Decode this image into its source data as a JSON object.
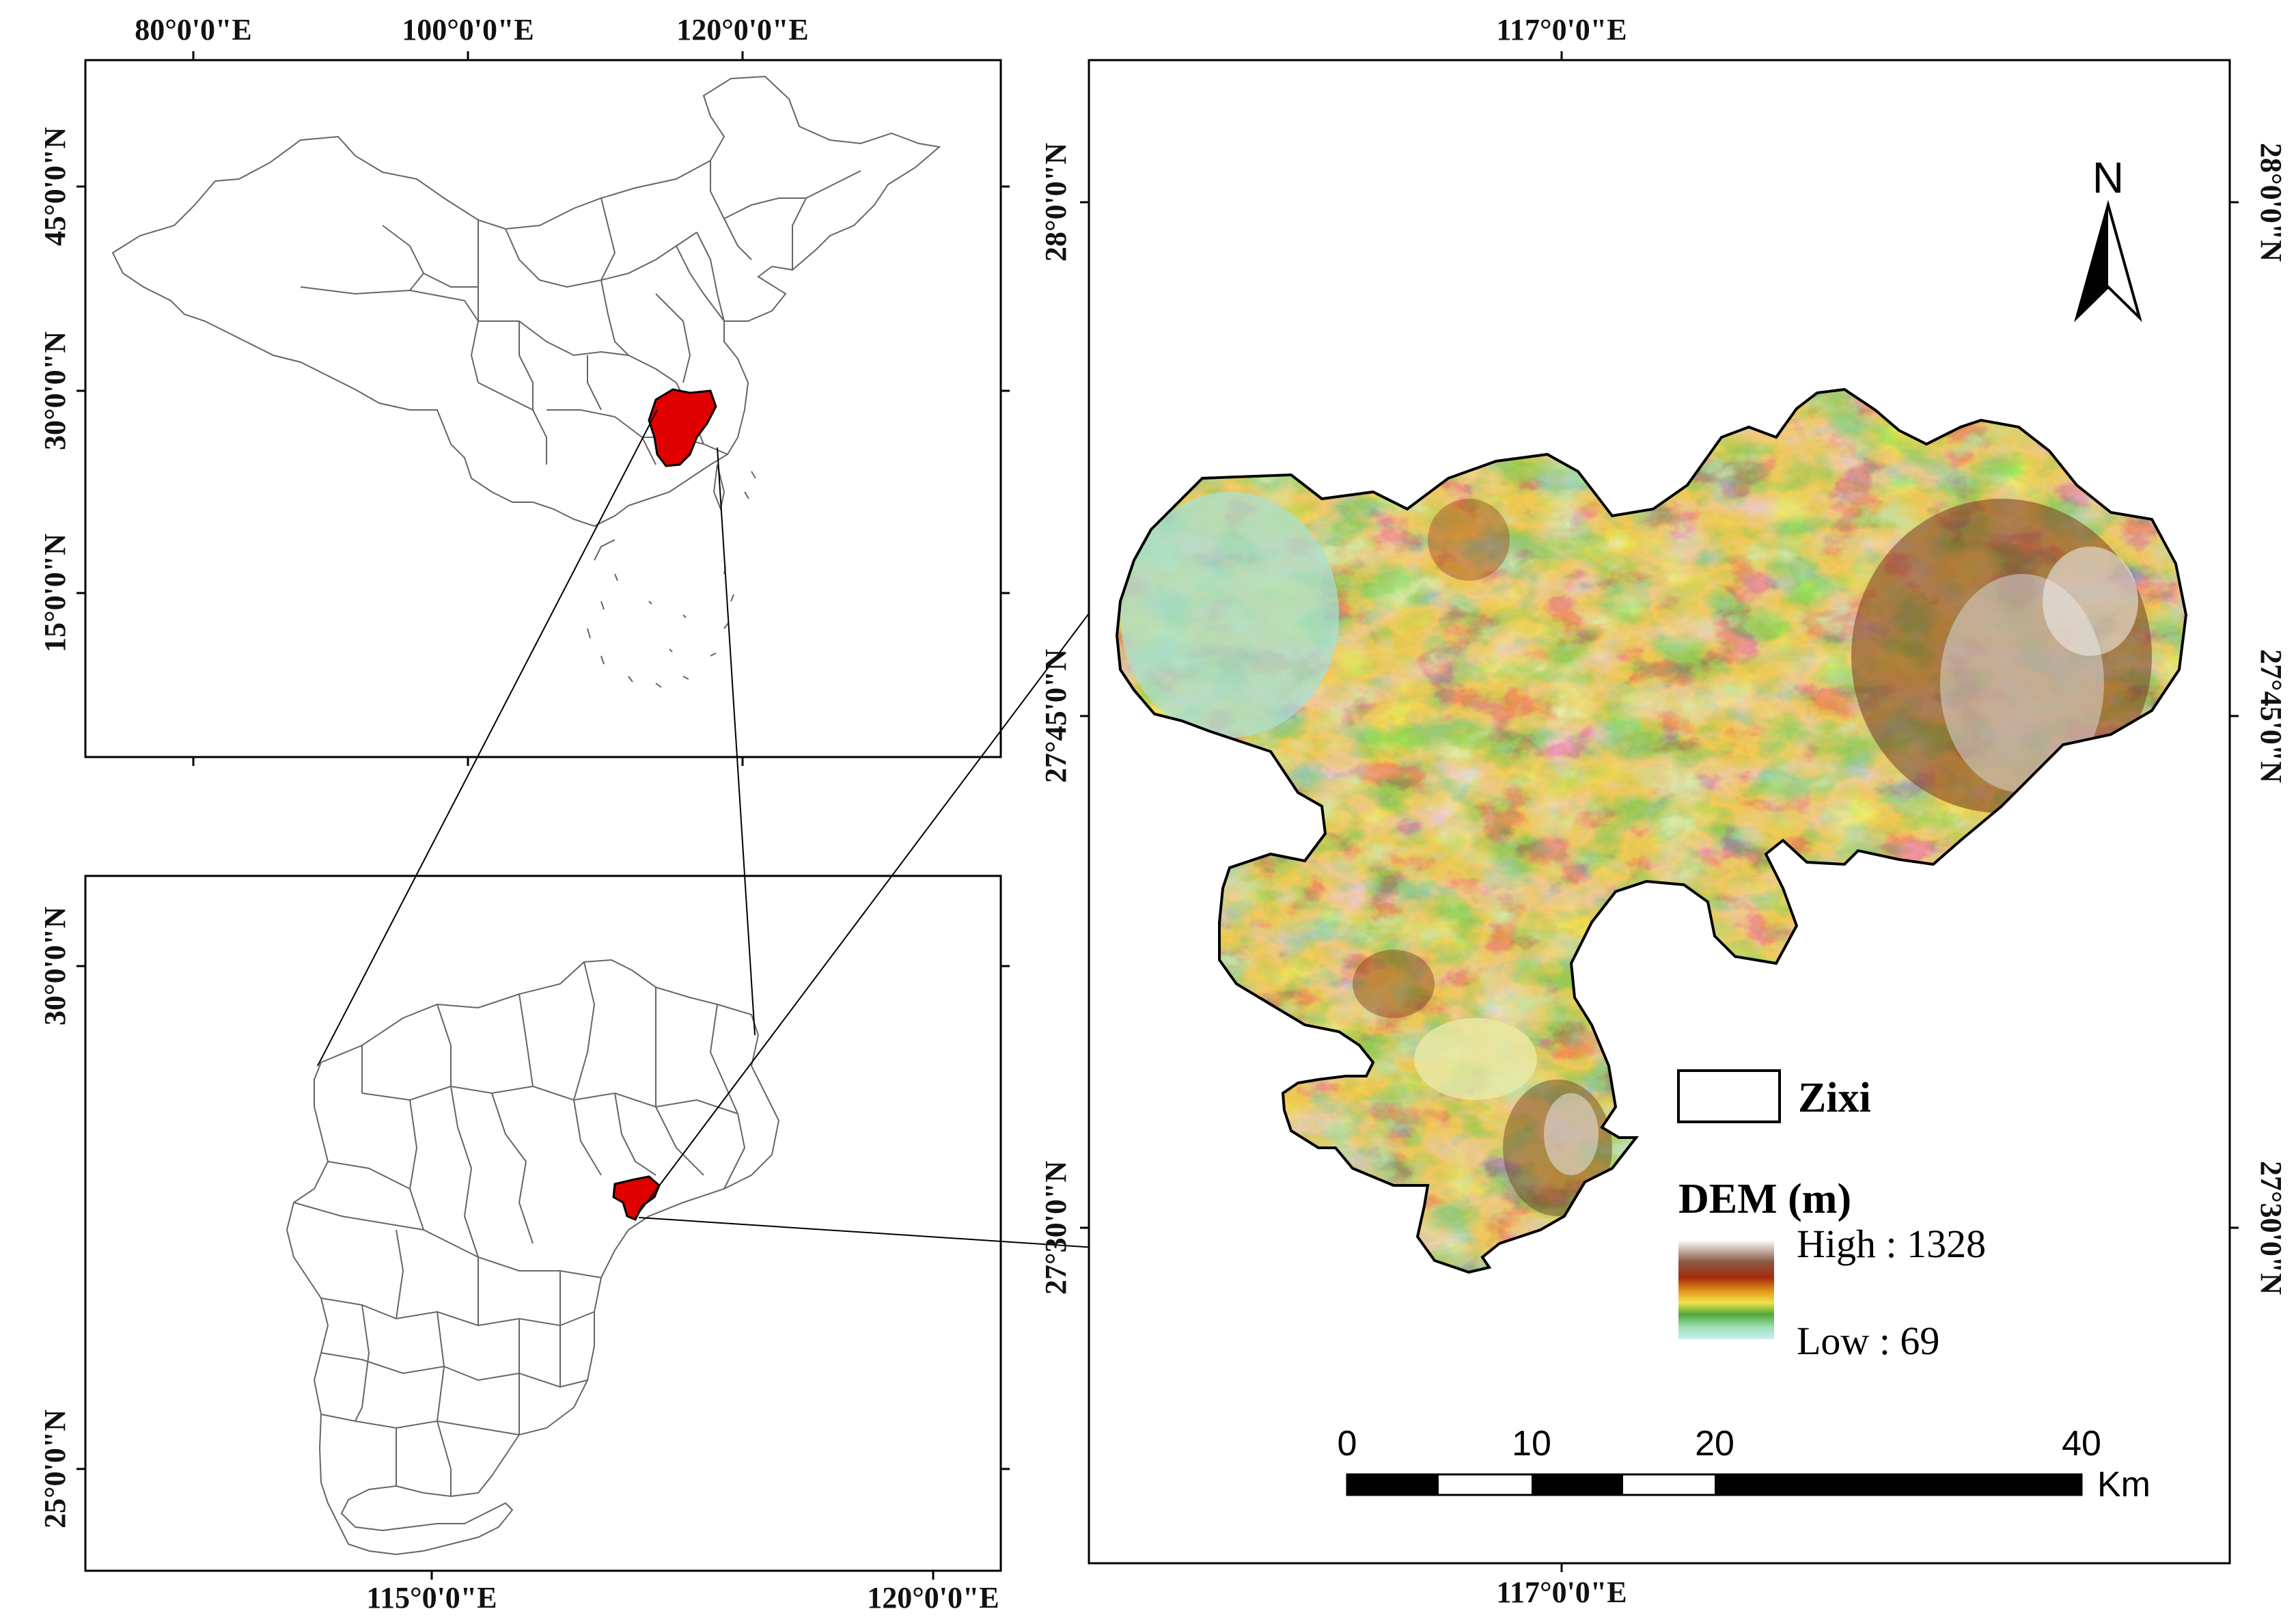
{
  "china_map": {
    "lon_labels": [
      "80°0'0\"E",
      "100°0'0\"E",
      "120°0'0\"E"
    ],
    "lat_labels": [
      "45°0'0\"N",
      "30°0'0\"N",
      "15°0'0\"N"
    ]
  },
  "jiangxi_map": {
    "lon_labels": [
      "115°0'0\"E",
      "120°0'0\"E"
    ],
    "lat_labels": [
      "30°0'0\"N",
      "25°0'0\"N"
    ]
  },
  "zixi_map": {
    "lon_label_top": "117°0'0\"E",
    "lon_label_bottom": "117°0'0\"E",
    "lat_labels": [
      "28°0'0\"N",
      "27°45'0\"N",
      "27°30'0\"N"
    ]
  },
  "north_arrow": {
    "label": "N"
  },
  "legend": {
    "boundary_label": "Zixi",
    "dem_title": "DEM (m)",
    "high_label": "High : 1328",
    "low_label": "Low : 69",
    "dem_high_value": 1328,
    "dem_low_value": 69,
    "ramp_colors": [
      "#ffffff",
      "#8a5a44",
      "#a52a0a",
      "#e39a1c",
      "#f2e34a",
      "#4fa83a",
      "#9fe0b4",
      "#c6f0f2"
    ]
  },
  "scale_bar": {
    "ticks": [
      "0",
      "10",
      "20",
      "40"
    ],
    "unit": "Km"
  },
  "colors": {
    "highlight": "#e00000",
    "frame": "#000000",
    "boundary_lines": "#777777"
  }
}
